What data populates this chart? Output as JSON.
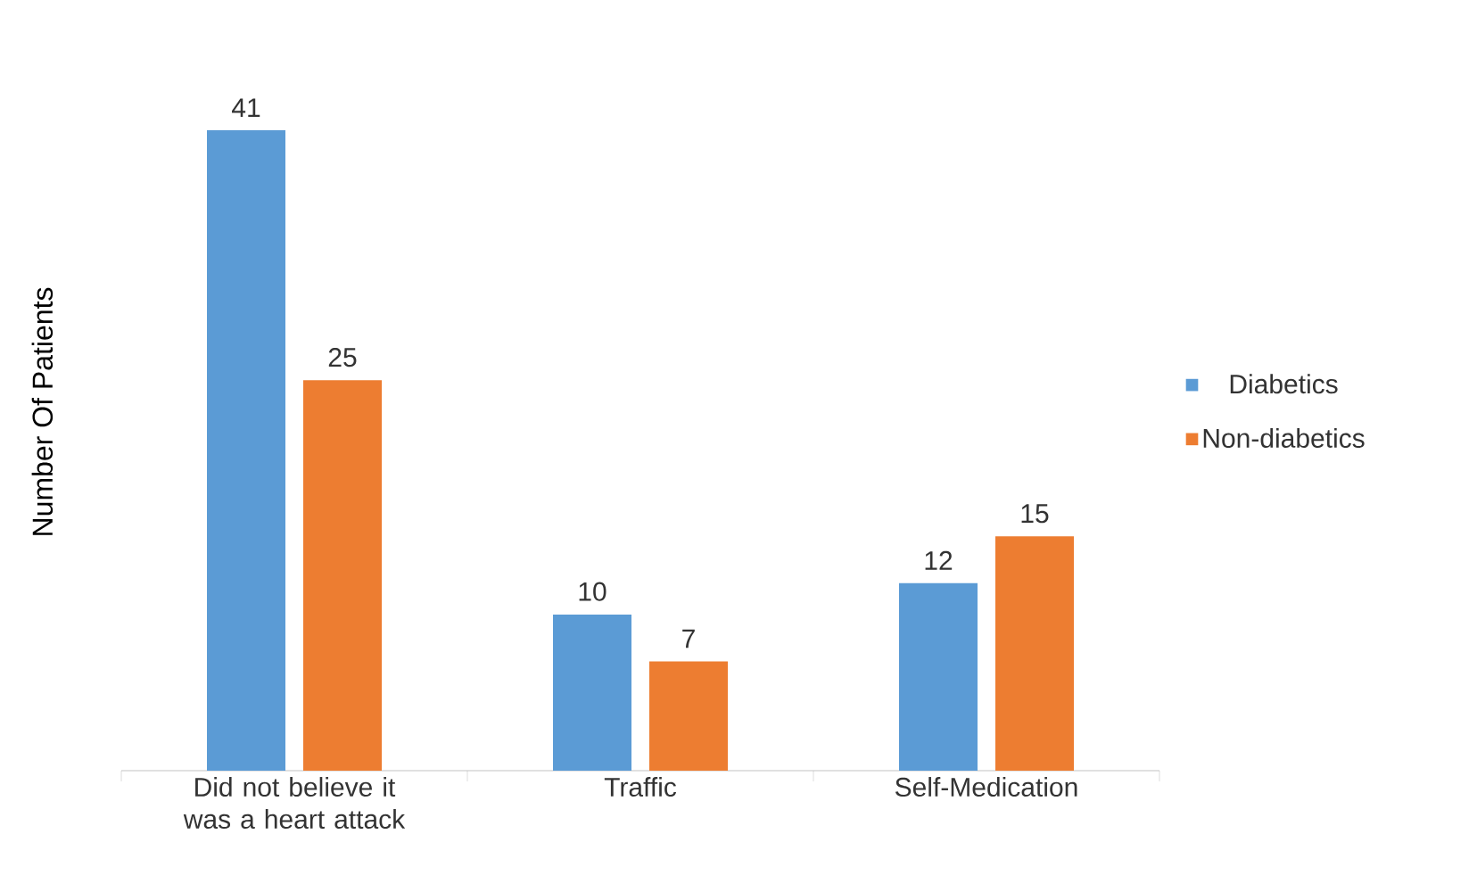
{
  "chart_data": {
    "type": "bar",
    "ylabel": "Number Of Patients",
    "categories": [
      "Did not believe it was a heart attack",
      "Traffic",
      "Self-Medication"
    ],
    "series": [
      {
        "name": "Diabetics",
        "color": "#5b9bd5",
        "values": [
          41,
          10,
          12
        ]
      },
      {
        "name": "Non-diabetics",
        "color": "#ed7d31",
        "values": [
          25,
          7,
          15
        ]
      }
    ],
    "data_labels": true,
    "legend": "right"
  }
}
